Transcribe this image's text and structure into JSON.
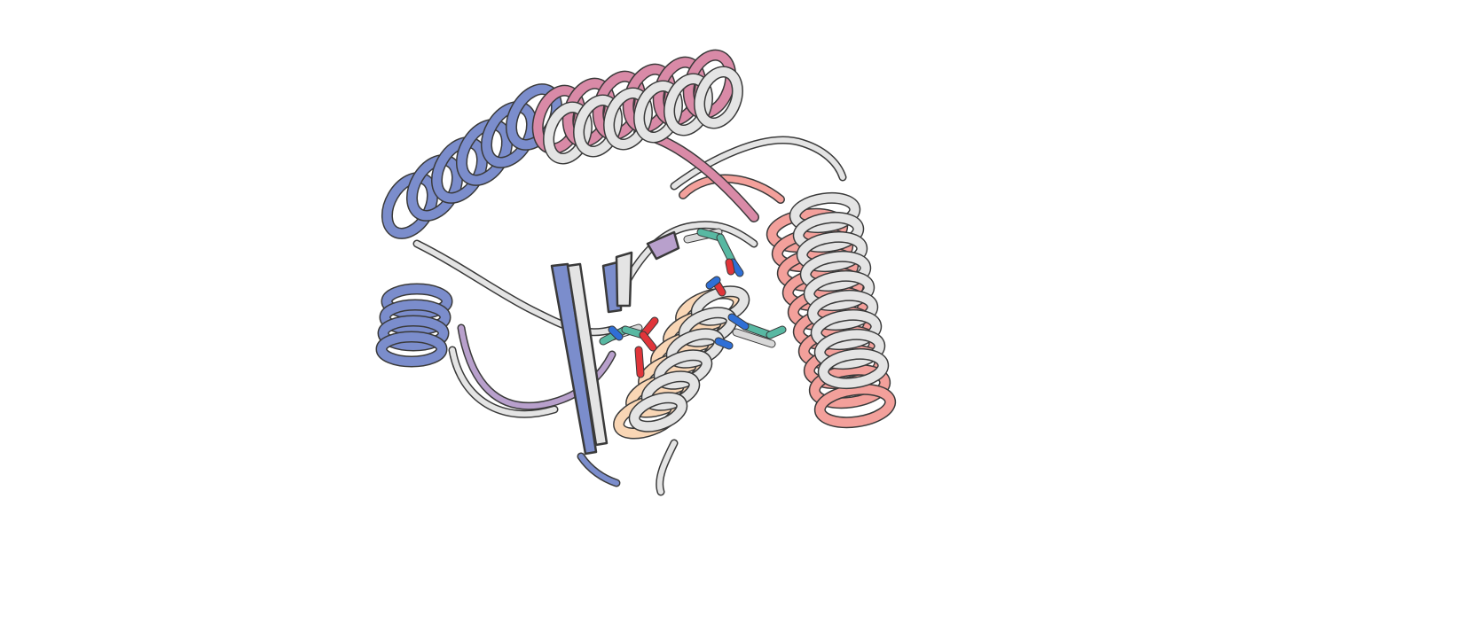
{
  "figure": {
    "subject": "superposed-protein-cartoon",
    "colors": {
      "background": "#ffffff",
      "reference_ribbon": "#e4e4e4",
      "ribbon_outline": "#3a3a3a",
      "n_terminal_blue": "#7b8dcc",
      "purple": "#b8a0cc",
      "pink": "#d98aa7",
      "salmon": "#f3a09b",
      "peach": "#f9d6b5",
      "sidechain_carbon": "#58b8a2",
      "sidechain_oxygen": "#e0353a",
      "sidechain_nitrogen": "#2f6fd6",
      "sidechain_reference": "#d8d8d8"
    },
    "icons": [
      "protein-structure-icon"
    ]
  }
}
